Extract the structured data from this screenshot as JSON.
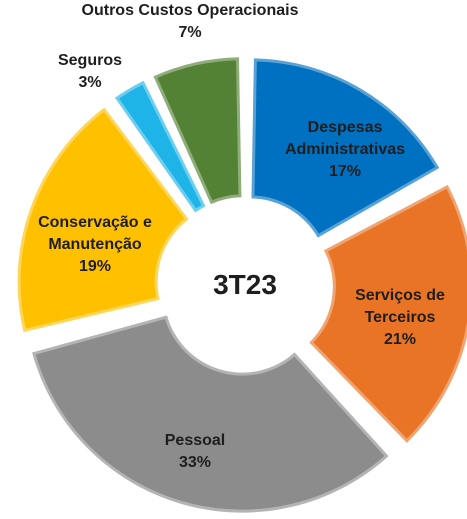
{
  "chart_data": {
    "type": "donut",
    "center_label": "3T23",
    "categories": [
      "Despesas Administrativas",
      "Serviços de Terceiros",
      "Pessoal",
      "Conservação e Manutenção",
      "Seguros",
      "Outros Custos Operacionais"
    ],
    "values": [
      17,
      21,
      33,
      19,
      3,
      7
    ],
    "value_labels": [
      "17%",
      "21%",
      "33%",
      "19%",
      "3%",
      "7%"
    ],
    "colors": [
      "#0070c0",
      "#e97425",
      "#8c8c8c",
      "#ffc000",
      "#1fb4e8",
      "#548235"
    ]
  }
}
